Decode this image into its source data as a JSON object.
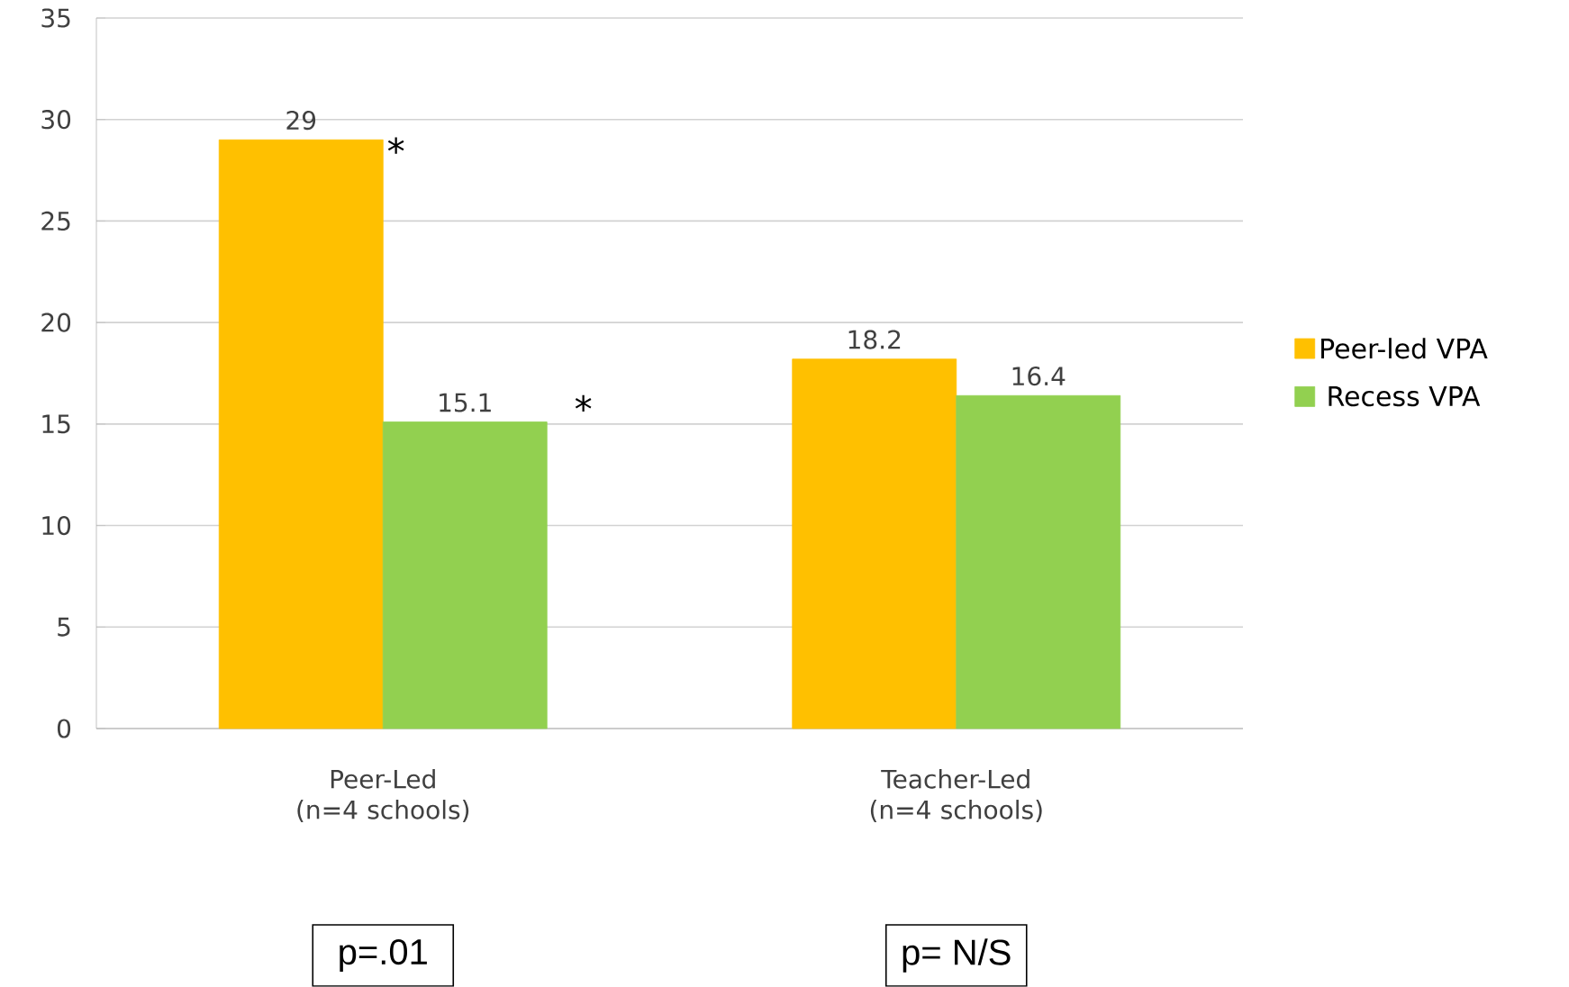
{
  "chart_data": {
    "type": "bar",
    "categories": [
      "Peer-Led (n=4 schools)",
      "Teacher-Led (n=4 schools)"
    ],
    "series": [
      {
        "name": "Peer-led VPA",
        "color": "#ffc000",
        "values": [
          29,
          18.2
        ]
      },
      {
        "name": "Recess VPA",
        "color": "#92d050",
        "values": [
          15.1,
          16.4
        ]
      }
    ],
    "ylim": [
      0,
      35
    ],
    "yticks": [
      0,
      5,
      10,
      15,
      20,
      25,
      30,
      35
    ],
    "grid": "y",
    "legend": "right",
    "data_labels": true,
    "annotations": [
      "*",
      "*",
      "p=.01",
      "p= N/S"
    ]
  }
}
